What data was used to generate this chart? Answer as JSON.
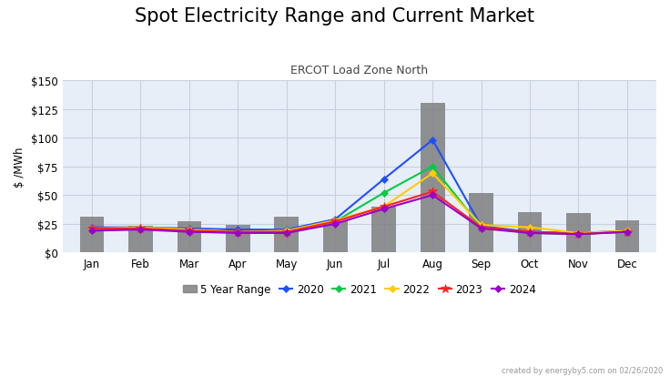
{
  "title": "Spot Electricity Range and Current Market",
  "subtitle": "ERCOT Load Zone North",
  "ylabel": "$ /MWh",
  "watermark": "created by energyby5.com on 02/26/2020",
  "months": [
    "Jan",
    "Feb",
    "Mar",
    "Apr",
    "May",
    "Jun",
    "Jul",
    "Aug",
    "Sep",
    "Oct",
    "Nov",
    "Dec"
  ],
  "bar_heights": [
    31,
    23,
    27,
    24,
    31,
    27,
    40,
    130,
    52,
    35,
    34,
    28
  ],
  "bar_color": "#7f7f7f",
  "bar_alpha": 0.85,
  "ylim": [
    0,
    150
  ],
  "yticks": [
    0,
    25,
    50,
    75,
    100,
    125,
    150
  ],
  "ytick_labels": [
    "$0",
    "$25",
    "$50",
    "$75",
    "$100",
    "$125",
    "$150"
  ],
  "lines": {
    "2020": {
      "values": [
        22,
        22,
        21,
        20,
        20,
        29,
        64,
        98,
        23,
        18,
        17,
        19
      ],
      "color": "#1f4fff",
      "marker": "D",
      "markersize": 4
    },
    "2021": {
      "values": [
        20,
        21,
        19,
        18,
        18,
        27,
        52,
        75,
        22,
        17,
        16,
        18
      ],
      "color": "#00cc44",
      "marker": "D",
      "markersize": 4
    },
    "2022": {
      "values": [
        21,
        22,
        20,
        18,
        19,
        28,
        40,
        69,
        24,
        22,
        17,
        19
      ],
      "color": "#ffcc00",
      "marker": "D",
      "markersize": 4
    },
    "2023": {
      "values": [
        21,
        21,
        19,
        18,
        18,
        27,
        40,
        53,
        22,
        18,
        16,
        18
      ],
      "color": "#ff2222",
      "marker": "*",
      "markersize": 7
    },
    "2024": {
      "values": [
        19,
        20,
        18,
        17,
        17,
        25,
        38,
        50,
        21,
        17,
        16,
        18
      ],
      "color": "#9900cc",
      "marker": "D",
      "markersize": 4
    }
  },
  "background_color": "#ffffff",
  "plot_bg_color": "#e8eef8",
  "grid_color": "#c8d0dc",
  "title_fontsize": 15,
  "subtitle_fontsize": 9,
  "legend_fontsize": 8.5,
  "tick_fontsize": 8.5,
  "bar_width": 0.5
}
